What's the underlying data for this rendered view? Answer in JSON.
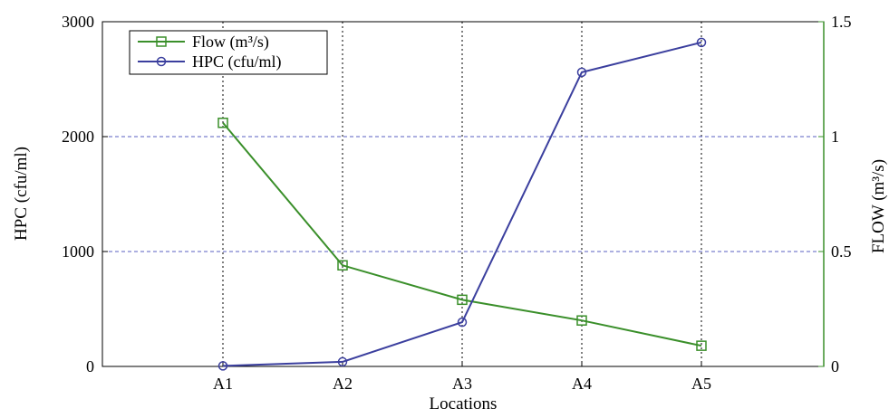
{
  "chart_data": {
    "type": "line",
    "xlabel": "Locations",
    "ylabel": "HPC (cfu/ml)",
    "ylabel_right": "FLOW (m³/s)",
    "categories": [
      "A1",
      "A2",
      "A3",
      "A4",
      "A5"
    ],
    "ylim": [
      0,
      3000
    ],
    "ylim_right": [
      0,
      1.5
    ],
    "yticks": [
      "0",
      "1000",
      "2000",
      "3000"
    ],
    "yticks_right": [
      "0",
      "0.5",
      "1",
      "1.5"
    ],
    "grid": true,
    "legend_position": "top-left",
    "series": [
      {
        "name": "Flow (m³/s)",
        "axis": "right",
        "marker": "square",
        "color": "#3a8f2a",
        "values": [
          1.06,
          0.44,
          0.29,
          0.2,
          0.09
        ]
      },
      {
        "name": "HPC (cfu/ml)",
        "axis": "left",
        "marker": "circle",
        "color": "#3b3f9e",
        "values": [
          5,
          40,
          385,
          2560,
          2820
        ]
      }
    ]
  }
}
